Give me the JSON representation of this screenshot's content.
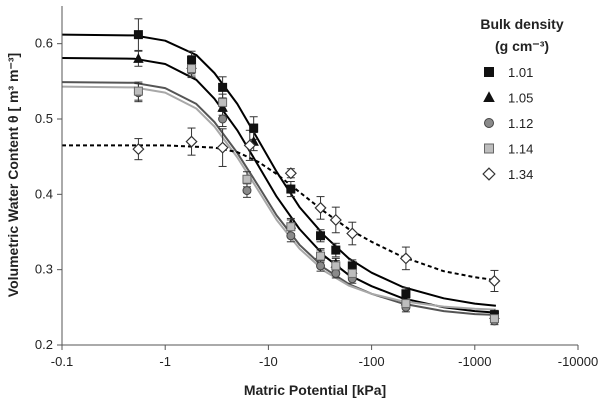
{
  "chart_data": {
    "type": "scatter",
    "xlabel": "Matric Potential [kPa]",
    "ylabel": "Volumetric Water Content θ [ m³ m⁻³]",
    "xscale": "log",
    "xlim": [
      -0.1,
      -10000
    ],
    "ylim": [
      0.2,
      0.65
    ],
    "x_ticks": [
      {
        "value": -0.1,
        "label": "-0.1"
      },
      {
        "value": -1,
        "label": "-1"
      },
      {
        "value": -10,
        "label": "-10"
      },
      {
        "value": -100,
        "label": "-100"
      },
      {
        "value": -1000,
        "label": "-1000"
      },
      {
        "value": -10000,
        "label": "-10000"
      }
    ],
    "y_ticks": [
      {
        "value": 0.2,
        "label": "0.2"
      },
      {
        "value": 0.3,
        "label": "0.3"
      },
      {
        "value": 0.4,
        "label": "0.4"
      },
      {
        "value": 0.5,
        "label": "0.5"
      },
      {
        "value": 0.6,
        "label": "0.6"
      }
    ],
    "legend": {
      "title_line1": "Bulk density",
      "title_line2": "(g cm⁻³)",
      "placement": "top-right"
    },
    "series": [
      {
        "name": "1.01",
        "marker": "square",
        "fill": "#111111",
        "stroke": "#111111",
        "curve_color": "#000000",
        "curve_style": "solid",
        "points": [
          {
            "x": -0.55,
            "y": 0.612,
            "err": 0.021
          },
          {
            "x": -1.8,
            "y": 0.578,
            "err": 0.012
          },
          {
            "x": -3.6,
            "y": 0.542,
            "err": 0.014
          },
          {
            "x": -7.2,
            "y": 0.488,
            "err": 0.015
          },
          {
            "x": -16.5,
            "y": 0.407,
            "err": 0.01
          },
          {
            "x": -32,
            "y": 0.345,
            "err": 0.008
          },
          {
            "x": -45,
            "y": 0.326,
            "err": 0.009
          },
          {
            "x": -65,
            "y": 0.305,
            "err": 0.008
          },
          {
            "x": -215,
            "y": 0.268,
            "err": 0.008
          },
          {
            "x": -1550,
            "y": 0.24,
            "err": 0.006
          }
        ],
        "curve": [
          {
            "x": -0.1,
            "y": 0.612
          },
          {
            "x": -0.5,
            "y": 0.611
          },
          {
            "x": -1,
            "y": 0.604
          },
          {
            "x": -2,
            "y": 0.585
          },
          {
            "x": -3,
            "y": 0.561
          },
          {
            "x": -5,
            "y": 0.52
          },
          {
            "x": -8,
            "y": 0.472
          },
          {
            "x": -12,
            "y": 0.43
          },
          {
            "x": -20,
            "y": 0.383
          },
          {
            "x": -35,
            "y": 0.345
          },
          {
            "x": -60,
            "y": 0.315
          },
          {
            "x": -100,
            "y": 0.296
          },
          {
            "x": -200,
            "y": 0.277
          },
          {
            "x": -500,
            "y": 0.262
          },
          {
            "x": -1000,
            "y": 0.255
          },
          {
            "x": -1600,
            "y": 0.252
          }
        ]
      },
      {
        "name": "1.05",
        "marker": "triangle",
        "fill": "#111111",
        "stroke": "#111111",
        "curve_color": "#000000",
        "curve_style": "solid",
        "points": [
          {
            "x": -0.55,
            "y": 0.58,
            "err": 0.01
          },
          {
            "x": -1.8,
            "y": 0.572,
            "err": 0.012
          },
          {
            "x": -3.6,
            "y": 0.515,
            "err": 0.01
          },
          {
            "x": -7.2,
            "y": 0.47,
            "err": 0.012
          },
          {
            "x": -16.5,
            "y": 0.36,
            "err": 0.008
          },
          {
            "x": -32,
            "y": 0.32,
            "err": 0.008
          },
          {
            "x": -45,
            "y": 0.308,
            "err": 0.007
          },
          {
            "x": -65,
            "y": 0.3,
            "err": 0.007
          },
          {
            "x": -215,
            "y": 0.258,
            "err": 0.006
          },
          {
            "x": -1550,
            "y": 0.24,
            "err": 0.005
          }
        ],
        "curve": [
          {
            "x": -0.1,
            "y": 0.581
          },
          {
            "x": -0.5,
            "y": 0.58
          },
          {
            "x": -1,
            "y": 0.573
          },
          {
            "x": -2,
            "y": 0.552
          },
          {
            "x": -3,
            "y": 0.527
          },
          {
            "x": -5,
            "y": 0.485
          },
          {
            "x": -8,
            "y": 0.438
          },
          {
            "x": -12,
            "y": 0.397
          },
          {
            "x": -20,
            "y": 0.354
          },
          {
            "x": -35,
            "y": 0.318
          },
          {
            "x": -60,
            "y": 0.293
          },
          {
            "x": -100,
            "y": 0.278
          },
          {
            "x": -200,
            "y": 0.262
          },
          {
            "x": -500,
            "y": 0.25
          },
          {
            "x": -1000,
            "y": 0.245
          },
          {
            "x": -1600,
            "y": 0.243
          }
        ]
      },
      {
        "name": "1.12",
        "marker": "circle",
        "fill": "#8a8a8a",
        "stroke": "#444444",
        "curve_color": "#555555",
        "curve_style": "solid",
        "points": [
          {
            "x": -0.55,
            "y": 0.535,
            "err": 0.012
          },
          {
            "x": -1.8,
            "y": 0.565,
            "err": 0.01
          },
          {
            "x": -3.6,
            "y": 0.5,
            "err": 0.01
          },
          {
            "x": -6.2,
            "y": 0.405,
            "err": 0.009
          },
          {
            "x": -16.5,
            "y": 0.345,
            "err": 0.008
          },
          {
            "x": -32,
            "y": 0.305,
            "err": 0.007
          },
          {
            "x": -45,
            "y": 0.295,
            "err": 0.006
          },
          {
            "x": -65,
            "y": 0.288,
            "err": 0.006
          },
          {
            "x": -215,
            "y": 0.25,
            "err": 0.006
          },
          {
            "x": -1550,
            "y": 0.232,
            "err": 0.005
          }
        ],
        "curve": [
          {
            "x": -0.1,
            "y": 0.549
          },
          {
            "x": -0.5,
            "y": 0.548
          },
          {
            "x": -1,
            "y": 0.541
          },
          {
            "x": -2,
            "y": 0.52
          },
          {
            "x": -3,
            "y": 0.496
          },
          {
            "x": -5,
            "y": 0.455
          },
          {
            "x": -8,
            "y": 0.411
          },
          {
            "x": -12,
            "y": 0.372
          },
          {
            "x": -20,
            "y": 0.333
          },
          {
            "x": -35,
            "y": 0.302
          },
          {
            "x": -60,
            "y": 0.281
          },
          {
            "x": -100,
            "y": 0.268
          },
          {
            "x": -200,
            "y": 0.255
          },
          {
            "x": -500,
            "y": 0.245
          },
          {
            "x": -1000,
            "y": 0.241
          },
          {
            "x": -1600,
            "y": 0.24
          }
        ]
      },
      {
        "name": "1.14",
        "marker": "square",
        "fill": "#bdbdbd",
        "stroke": "#666666",
        "curve_color": "#a8a8a8",
        "curve_style": "solid",
        "points": [
          {
            "x": -0.55,
            "y": 0.537,
            "err": 0.012
          },
          {
            "x": -1.8,
            "y": 0.567,
            "err": 0.01
          },
          {
            "x": -3.6,
            "y": 0.522,
            "err": 0.011
          },
          {
            "x": -6.2,
            "y": 0.42,
            "err": 0.01
          },
          {
            "x": -16.5,
            "y": 0.357,
            "err": 0.009
          },
          {
            "x": -32,
            "y": 0.318,
            "err": 0.008
          },
          {
            "x": -45,
            "y": 0.305,
            "err": 0.007
          },
          {
            "x": -65,
            "y": 0.295,
            "err": 0.007
          },
          {
            "x": -215,
            "y": 0.255,
            "err": 0.006
          },
          {
            "x": -1550,
            "y": 0.235,
            "err": 0.005
          }
        ],
        "curve": [
          {
            "x": -0.1,
            "y": 0.543
          },
          {
            "x": -0.5,
            "y": 0.542
          },
          {
            "x": -1,
            "y": 0.535
          },
          {
            "x": -2,
            "y": 0.514
          },
          {
            "x": -3,
            "y": 0.49
          },
          {
            "x": -5,
            "y": 0.449
          },
          {
            "x": -8,
            "y": 0.405
          },
          {
            "x": -12,
            "y": 0.366
          },
          {
            "x": -20,
            "y": 0.328
          },
          {
            "x": -35,
            "y": 0.298
          },
          {
            "x": -60,
            "y": 0.279
          },
          {
            "x": -100,
            "y": 0.268
          },
          {
            "x": -200,
            "y": 0.258
          },
          {
            "x": -500,
            "y": 0.251
          },
          {
            "x": -1000,
            "y": 0.248
          },
          {
            "x": -1600,
            "y": 0.247
          }
        ]
      },
      {
        "name": "1.34",
        "marker": "diamond",
        "fill": "#ffffff",
        "stroke": "#333333",
        "curve_color": "#000000",
        "curve_style": "dashed",
        "points": [
          {
            "x": -0.55,
            "y": 0.46,
            "err": 0.014
          },
          {
            "x": -1.8,
            "y": 0.47,
            "err": 0.018
          },
          {
            "x": -3.6,
            "y": 0.462,
            "err": 0.025
          },
          {
            "x": -6.6,
            "y": 0.465,
            "err": 0.02
          },
          {
            "x": -16.5,
            "y": 0.428,
            "err": 0.006
          },
          {
            "x": -32,
            "y": 0.382,
            "err": 0.015
          },
          {
            "x": -45,
            "y": 0.366,
            "err": 0.017
          },
          {
            "x": -65,
            "y": 0.348,
            "err": 0.015
          },
          {
            "x": -215,
            "y": 0.315,
            "err": 0.015
          },
          {
            "x": -1550,
            "y": 0.285,
            "err": 0.014
          }
        ],
        "curve": [
          {
            "x": -0.1,
            "y": 0.465
          },
          {
            "x": -1,
            "y": 0.465
          },
          {
            "x": -3,
            "y": 0.462
          },
          {
            "x": -5,
            "y": 0.456
          },
          {
            "x": -8,
            "y": 0.443
          },
          {
            "x": -12,
            "y": 0.427
          },
          {
            "x": -20,
            "y": 0.403
          },
          {
            "x": -35,
            "y": 0.377
          },
          {
            "x": -60,
            "y": 0.354
          },
          {
            "x": -100,
            "y": 0.337
          },
          {
            "x": -200,
            "y": 0.317
          },
          {
            "x": -500,
            "y": 0.298
          },
          {
            "x": -1000,
            "y": 0.29
          },
          {
            "x": -1600,
            "y": 0.286
          }
        ]
      }
    ]
  }
}
